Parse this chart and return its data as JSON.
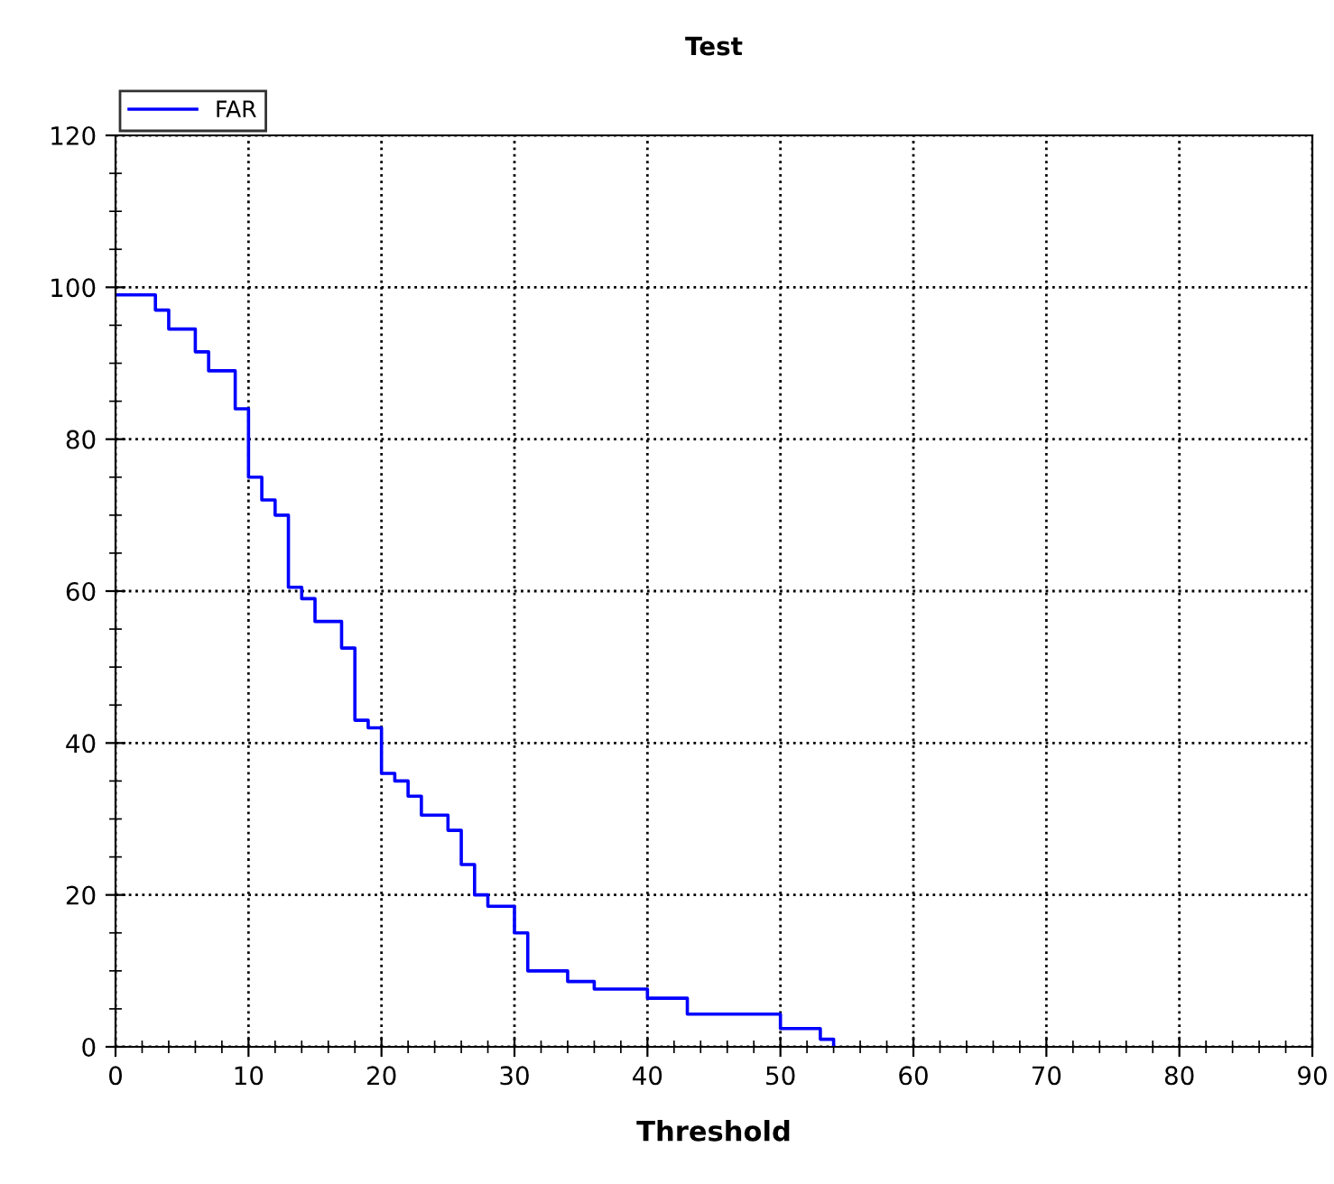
{
  "chart_data": {
    "type": "step",
    "title": "Test",
    "xlabel": "Threshold",
    "x": [
      0,
      3,
      4,
      6,
      7,
      9,
      10,
      11,
      12,
      13,
      14,
      15,
      17,
      18,
      19,
      20,
      21,
      22,
      23,
      25,
      26,
      27,
      28,
      30,
      31,
      34,
      36,
      40,
      43,
      50,
      53,
      54
    ],
    "series": [
      {
        "name": "FAR",
        "color": "#0000ff",
        "values": [
          99,
          97,
          94.5,
          91.5,
          89,
          84,
          75,
          72,
          70,
          60.5,
          59,
          56,
          52.5,
          43,
          42,
          36,
          35,
          33,
          30.5,
          28.5,
          24,
          20,
          18.5,
          15,
          10,
          8.6,
          7.6,
          6.4,
          4.3,
          2.4,
          1,
          0
        ]
      }
    ],
    "xlim": [
      0,
      90
    ],
    "xticks": [
      0,
      10,
      20,
      30,
      40,
      50,
      60,
      70,
      80,
      90
    ],
    "ylim": [
      0,
      120
    ],
    "yticks": [
      0,
      20,
      40,
      60,
      80,
      100,
      120
    ],
    "grid": true,
    "line_style": "solid",
    "legend": "top left"
  }
}
